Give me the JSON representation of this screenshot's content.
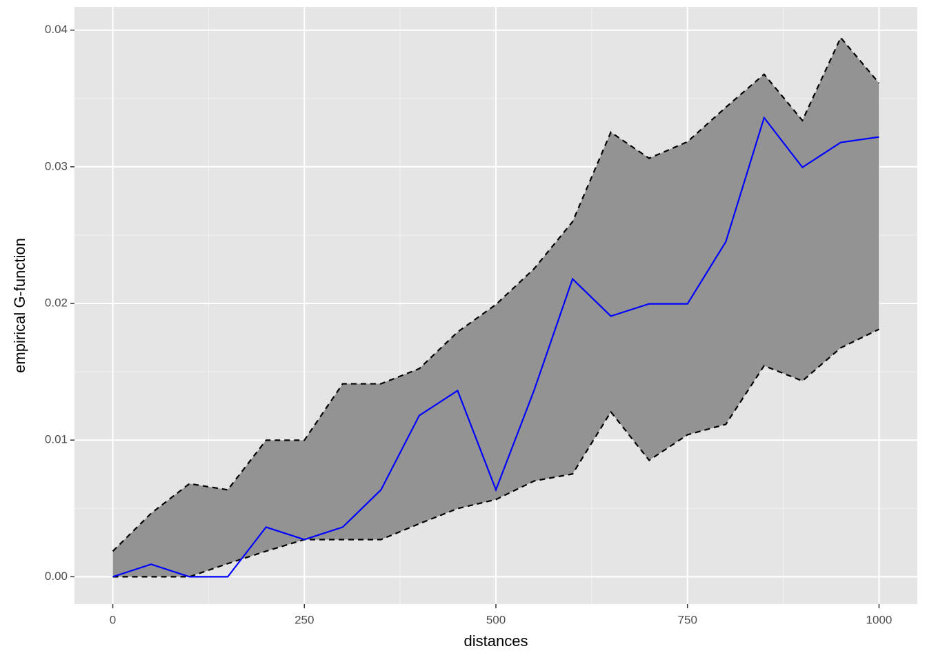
{
  "chart_data": {
    "type": "line",
    "x_label": "distances",
    "y_label": "empirical G-function",
    "x": [
      0,
      50,
      100,
      150,
      200,
      250,
      300,
      350,
      400,
      450,
      500,
      550,
      600,
      650,
      700,
      750,
      800,
      850,
      900,
      950,
      1000
    ],
    "values": [
      0,
      0.00091,
      0,
      0,
      0.00363,
      0.00272,
      0.00363,
      0.00636,
      0.0118,
      0.01362,
      0.00636,
      0.01367,
      0.02179,
      0.01907,
      0.01997,
      0.01997,
      0.02451,
      0.03359,
      0.02996,
      0.03178,
      0.03218
    ],
    "color": "#0000ff",
    "band_lower": [
      0,
      0,
      0,
      0.00096,
      0.00187,
      0.00272,
      0.00272,
      0.00272,
      0.00388,
      0.00499,
      0.00565,
      0.00701,
      0.00752,
      0.01206,
      0.00852,
      0.01039,
      0.01115,
      0.01544,
      0.01433,
      0.01675,
      0.01811
    ],
    "band_upper": [
      0.00187,
      0.00464,
      0.00681,
      0.00636,
      0.00999,
      0.00999,
      0.01412,
      0.01412,
      0.01523,
      0.01791,
      0.01992,
      0.02255,
      0.02598,
      0.03253,
      0.03062,
      0.03183,
      0.03435,
      0.03677,
      0.03339,
      0.03945,
      0.03612
    ],
    "band_color": "#939393",
    "xlim": [
      -50,
      1050
    ],
    "xticks": [
      0,
      250,
      500,
      750,
      1000
    ],
    "ylim": [
      -0.002,
      0.0417
    ],
    "yticks": [
      {
        "value": 0,
        "label": "0.00"
      },
      0.01,
      0.02,
      0.03,
      0.04
    ],
    "grid": true
  }
}
